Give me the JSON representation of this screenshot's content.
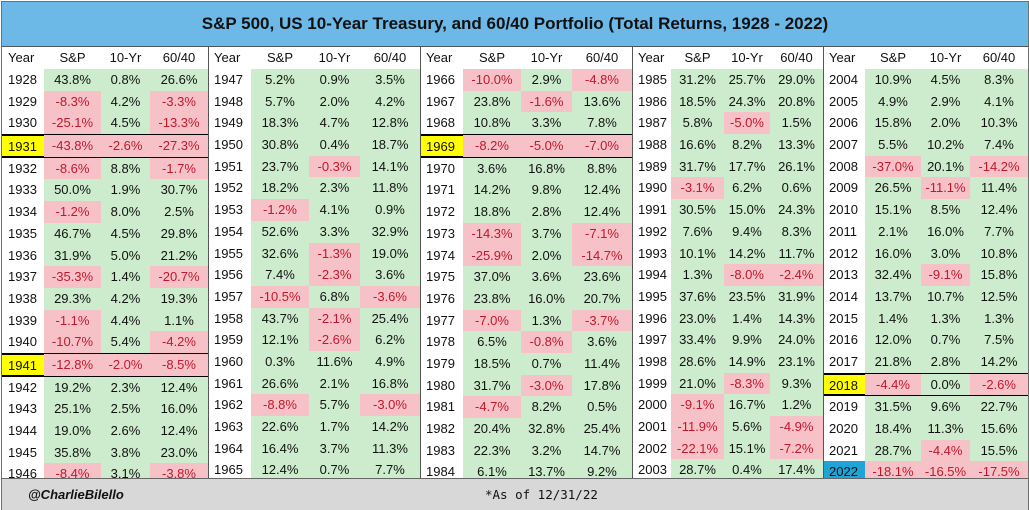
{
  "title": "S&P 500, US 10-Year Treasury, and 60/40 Portfolio (Total Returns, 1928 - 2022)",
  "headers": [
    "Year",
    "S&P",
    "10-Yr",
    "60/40"
  ],
  "columns": [
    {
      "rows": [
        [
          "1928",
          "43.8%",
          "0.8%",
          "26.6%"
        ],
        [
          "1929",
          "-8.3%",
          "4.2%",
          "-3.3%"
        ],
        [
          "1930",
          "-25.1%",
          "4.5%",
          "-13.3%"
        ],
        [
          "1931",
          "-43.8%",
          "-2.6%",
          "-27.3%"
        ],
        [
          "1932",
          "-8.6%",
          "8.8%",
          "-1.7%"
        ],
        [
          "1933",
          "50.0%",
          "1.9%",
          "30.7%"
        ],
        [
          "1934",
          "-1.2%",
          "8.0%",
          "2.5%"
        ],
        [
          "1935",
          "46.7%",
          "4.5%",
          "29.8%"
        ],
        [
          "1936",
          "31.9%",
          "5.0%",
          "21.2%"
        ],
        [
          "1937",
          "-35.3%",
          "1.4%",
          "-20.7%"
        ],
        [
          "1938",
          "29.3%",
          "4.2%",
          "19.3%"
        ],
        [
          "1939",
          "-1.1%",
          "4.4%",
          "1.1%"
        ],
        [
          "1940",
          "-10.7%",
          "5.4%",
          "-4.2%"
        ],
        [
          "1941",
          "-12.8%",
          "-2.0%",
          "-8.5%"
        ],
        [
          "1942",
          "19.2%",
          "2.3%",
          "12.4%"
        ],
        [
          "1943",
          "25.1%",
          "2.5%",
          "16.0%"
        ],
        [
          "1944",
          "19.0%",
          "2.6%",
          "12.4%"
        ],
        [
          "1945",
          "35.8%",
          "3.8%",
          "23.0%"
        ],
        [
          "1946",
          "-8.4%",
          "3.1%",
          "-3.8%"
        ]
      ],
      "highlight": [
        "1931",
        "1941"
      ]
    },
    {
      "rows": [
        [
          "1947",
          "5.2%",
          "0.9%",
          "3.5%"
        ],
        [
          "1948",
          "5.7%",
          "2.0%",
          "4.2%"
        ],
        [
          "1949",
          "18.3%",
          "4.7%",
          "12.8%"
        ],
        [
          "1950",
          "30.8%",
          "0.4%",
          "18.7%"
        ],
        [
          "1951",
          "23.7%",
          "-0.3%",
          "14.1%"
        ],
        [
          "1952",
          "18.2%",
          "2.3%",
          "11.8%"
        ],
        [
          "1953",
          "-1.2%",
          "4.1%",
          "0.9%"
        ],
        [
          "1954",
          "52.6%",
          "3.3%",
          "32.9%"
        ],
        [
          "1955",
          "32.6%",
          "-1.3%",
          "19.0%"
        ],
        [
          "1956",
          "7.4%",
          "-2.3%",
          "3.6%"
        ],
        [
          "1957",
          "-10.5%",
          "6.8%",
          "-3.6%"
        ],
        [
          "1958",
          "43.7%",
          "-2.1%",
          "25.4%"
        ],
        [
          "1959",
          "12.1%",
          "-2.6%",
          "6.2%"
        ],
        [
          "1960",
          "0.3%",
          "11.6%",
          "4.9%"
        ],
        [
          "1961",
          "26.6%",
          "2.1%",
          "16.8%"
        ],
        [
          "1962",
          "-8.8%",
          "5.7%",
          "-3.0%"
        ],
        [
          "1963",
          "22.6%",
          "1.7%",
          "14.2%"
        ],
        [
          "1964",
          "16.4%",
          "3.7%",
          "11.3%"
        ],
        [
          "1965",
          "12.4%",
          "0.7%",
          "7.7%"
        ]
      ],
      "highlight": []
    },
    {
      "rows": [
        [
          "1966",
          "-10.0%",
          "2.9%",
          "-4.8%"
        ],
        [
          "1967",
          "23.8%",
          "-1.6%",
          "13.6%"
        ],
        [
          "1968",
          "10.8%",
          "3.3%",
          "7.8%"
        ],
        [
          "1969",
          "-8.2%",
          "-5.0%",
          "-7.0%"
        ],
        [
          "1970",
          "3.6%",
          "16.8%",
          "8.8%"
        ],
        [
          "1971",
          "14.2%",
          "9.8%",
          "12.4%"
        ],
        [
          "1972",
          "18.8%",
          "2.8%",
          "12.4%"
        ],
        [
          "1973",
          "-14.3%",
          "3.7%",
          "-7.1%"
        ],
        [
          "1974",
          "-25.9%",
          "2.0%",
          "-14.7%"
        ],
        [
          "1975",
          "37.0%",
          "3.6%",
          "23.6%"
        ],
        [
          "1976",
          "23.8%",
          "16.0%",
          "20.7%"
        ],
        [
          "1977",
          "-7.0%",
          "1.3%",
          "-3.7%"
        ],
        [
          "1978",
          "6.5%",
          "-0.8%",
          "3.6%"
        ],
        [
          "1979",
          "18.5%",
          "0.7%",
          "11.4%"
        ],
        [
          "1980",
          "31.7%",
          "-3.0%",
          "17.8%"
        ],
        [
          "1981",
          "-4.7%",
          "8.2%",
          "0.5%"
        ],
        [
          "1982",
          "20.4%",
          "32.8%",
          "25.4%"
        ],
        [
          "1983",
          "22.3%",
          "3.2%",
          "14.7%"
        ],
        [
          "1984",
          "6.1%",
          "13.7%",
          "9.2%"
        ]
      ],
      "highlight": [
        "1969"
      ]
    },
    {
      "rows": [
        [
          "1985",
          "31.2%",
          "25.7%",
          "29.0%"
        ],
        [
          "1986",
          "18.5%",
          "24.3%",
          "20.8%"
        ],
        [
          "1987",
          "5.8%",
          "-5.0%",
          "1.5%"
        ],
        [
          "1988",
          "16.6%",
          "8.2%",
          "13.3%"
        ],
        [
          "1989",
          "31.7%",
          "17.7%",
          "26.1%"
        ],
        [
          "1990",
          "-3.1%",
          "6.2%",
          "0.6%"
        ],
        [
          "1991",
          "30.5%",
          "15.0%",
          "24.3%"
        ],
        [
          "1992",
          "7.6%",
          "9.4%",
          "8.3%"
        ],
        [
          "1993",
          "10.1%",
          "14.2%",
          "11.7%"
        ],
        [
          "1994",
          "1.3%",
          "-8.0%",
          "-2.4%"
        ],
        [
          "1995",
          "37.6%",
          "23.5%",
          "31.9%"
        ],
        [
          "1996",
          "23.0%",
          "1.4%",
          "14.3%"
        ],
        [
          "1997",
          "33.4%",
          "9.9%",
          "24.0%"
        ],
        [
          "1998",
          "28.6%",
          "14.9%",
          "23.1%"
        ],
        [
          "1999",
          "21.0%",
          "-8.3%",
          "9.3%"
        ],
        [
          "2000",
          "-9.1%",
          "16.7%",
          "1.2%"
        ],
        [
          "2001",
          "-11.9%",
          "5.6%",
          "-4.9%"
        ],
        [
          "2002",
          "-22.1%",
          "15.1%",
          "-7.2%"
        ],
        [
          "2003",
          "28.7%",
          "0.4%",
          "17.4%"
        ]
      ],
      "highlight": []
    },
    {
      "rows": [
        [
          "2004",
          "10.9%",
          "4.5%",
          "8.3%"
        ],
        [
          "2005",
          "4.9%",
          "2.9%",
          "4.1%"
        ],
        [
          "2006",
          "15.8%",
          "2.0%",
          "10.3%"
        ],
        [
          "2007",
          "5.5%",
          "10.2%",
          "7.4%"
        ],
        [
          "2008",
          "-37.0%",
          "20.1%",
          "-14.2%"
        ],
        [
          "2009",
          "26.5%",
          "-11.1%",
          "11.4%"
        ],
        [
          "2010",
          "15.1%",
          "8.5%",
          "12.4%"
        ],
        [
          "2011",
          "2.1%",
          "16.0%",
          "7.7%"
        ],
        [
          "2012",
          "16.0%",
          "3.0%",
          "10.8%"
        ],
        [
          "2013",
          "32.4%",
          "-9.1%",
          "15.8%"
        ],
        [
          "2014",
          "13.7%",
          "10.7%",
          "12.5%"
        ],
        [
          "2015",
          "1.4%",
          "1.3%",
          "1.3%"
        ],
        [
          "2016",
          "12.0%",
          "0.7%",
          "7.5%"
        ],
        [
          "2017",
          "21.8%",
          "2.8%",
          "14.2%"
        ],
        [
          "2018",
          "-4.4%",
          "0.0%",
          "-2.6%"
        ],
        [
          "2019",
          "31.5%",
          "9.6%",
          "22.7%"
        ],
        [
          "2020",
          "18.4%",
          "11.3%",
          "15.6%"
        ],
        [
          "2021",
          "28.7%",
          "-4.4%",
          "15.5%"
        ],
        [
          "2022",
          "-18.1%",
          "-16.5%",
          "-17.5%"
        ]
      ],
      "highlight": [
        "2018"
      ],
      "current": "2022"
    }
  ],
  "footer": {
    "handle": "@CharlieBilello",
    "asof": "*As of 12/31/22"
  },
  "colors": {
    "title_bg": "#6cb8e6",
    "positive_bg": "#cdeccd",
    "negative_bg": "#f6c2c8",
    "negative_text": "#c0182c",
    "highlight_year": "#ffff00",
    "current_year": "#1fa4d8",
    "footer_bg": "#d8d8d8"
  }
}
